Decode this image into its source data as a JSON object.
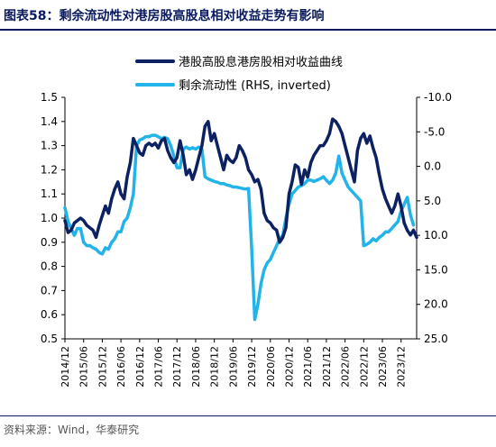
{
  "header": {
    "title": "图表58：剩余流动性对港房股高股息相对收益走势有影响"
  },
  "footer": {
    "source": "资料来源：Wind，华泰研究"
  },
  "colors": {
    "navy": "#0b2161",
    "cyan": "#22b3e8",
    "title": "#0a1a5c"
  },
  "chart_data": {
    "type": "line",
    "title": "",
    "xlabel": "",
    "ylabel": "",
    "ylim": [
      0.5,
      1.5
    ],
    "y_ticks": [
      "1.5",
      "1.4",
      "1.3",
      "1.2",
      "1.1",
      "1.0",
      "0.9",
      "0.8",
      "0.7",
      "0.6",
      "0.5"
    ],
    "y2lim": [
      -10,
      25
    ],
    "y2_inverted": true,
    "y2_ticks": [
      "-10.0",
      "-5.0",
      "0.0",
      "5.0",
      "10.0",
      "15.0",
      "20.0",
      "25.0"
    ],
    "x_range": [
      "2014-12",
      "2024-05"
    ],
    "x_ticks": [
      "2014/12",
      "2015/06",
      "2015/12",
      "2016/06",
      "2016/12",
      "2017/06",
      "2017/12",
      "2018/06",
      "2018/12",
      "2019/06",
      "2019/12",
      "2020/06",
      "2020/12",
      "2021/06",
      "2021/12",
      "2022/06",
      "2022/12",
      "2023/06",
      "2023/12"
    ],
    "legend_position": "top-center",
    "series": [
      {
        "name": "港股高股息港房股相对收益曲线",
        "axis": "left",
        "color": "#0b2161",
        "points": [
          [
            "2014-12",
            0.99
          ],
          [
            "2015-01",
            0.94
          ],
          [
            "2015-02",
            0.95
          ],
          [
            "2015-03",
            0.98
          ],
          [
            "2015-04",
            0.99
          ],
          [
            "2015-05",
            1.0
          ],
          [
            "2015-06",
            0.99
          ],
          [
            "2015-07",
            0.97
          ],
          [
            "2015-08",
            0.96
          ],
          [
            "2015-09",
            0.95
          ],
          [
            "2015-10",
            0.92
          ],
          [
            "2015-11",
            0.97
          ],
          [
            "2015-12",
            1.01
          ],
          [
            "2016-01",
            1.05
          ],
          [
            "2016-02",
            1.02
          ],
          [
            "2016-03",
            1.08
          ],
          [
            "2016-04",
            1.12
          ],
          [
            "2016-05",
            1.15
          ],
          [
            "2016-06",
            1.1
          ],
          [
            "2016-07",
            1.08
          ],
          [
            "2016-08",
            1.17
          ],
          [
            "2016-09",
            1.23
          ],
          [
            "2016-10",
            1.33
          ],
          [
            "2016-11",
            1.3
          ],
          [
            "2016-12",
            1.27
          ],
          [
            "2017-01",
            1.26
          ],
          [
            "2017-02",
            1.3
          ],
          [
            "2017-03",
            1.31
          ],
          [
            "2017-04",
            1.3
          ],
          [
            "2017-05",
            1.31
          ],
          [
            "2017-06",
            1.29
          ],
          [
            "2017-07",
            1.32
          ],
          [
            "2017-08",
            1.33
          ],
          [
            "2017-09",
            1.28
          ],
          [
            "2017-10",
            1.25
          ],
          [
            "2017-11",
            1.23
          ],
          [
            "2017-12",
            1.25
          ],
          [
            "2018-01",
            1.32
          ],
          [
            "2018-02",
            1.26
          ],
          [
            "2018-03",
            1.18
          ],
          [
            "2018-04",
            1.2
          ],
          [
            "2018-05",
            1.16
          ],
          [
            "2018-06",
            1.2
          ],
          [
            "2018-07",
            1.25
          ],
          [
            "2018-08",
            1.3
          ],
          [
            "2018-09",
            1.38
          ],
          [
            "2018-10",
            1.4
          ],
          [
            "2018-11",
            1.32
          ],
          [
            "2018-12",
            1.35
          ],
          [
            "2019-01",
            1.3
          ],
          [
            "2019-02",
            1.25
          ],
          [
            "2019-03",
            1.2
          ],
          [
            "2019-04",
            1.26
          ],
          [
            "2019-05",
            1.24
          ],
          [
            "2019-06",
            1.23
          ],
          [
            "2019-07",
            1.25
          ],
          [
            "2019-08",
            1.3
          ],
          [
            "2019-09",
            1.28
          ],
          [
            "2019-10",
            1.25
          ],
          [
            "2019-11",
            1.2
          ],
          [
            "2019-12",
            1.18
          ],
          [
            "2020-01",
            1.15
          ],
          [
            "2020-02",
            1.16
          ],
          [
            "2020-03",
            1.12
          ],
          [
            "2020-04",
            1.02
          ],
          [
            "2020-05",
            0.99
          ],
          [
            "2020-06",
            0.98
          ],
          [
            "2020-07",
            0.96
          ],
          [
            "2020-08",
            0.95
          ],
          [
            "2020-09",
            0.9
          ],
          [
            "2020-10",
            0.92
          ],
          [
            "2020-11",
            0.96
          ],
          [
            "2020-12",
            1.1
          ],
          [
            "2021-01",
            1.15
          ],
          [
            "2021-02",
            1.22
          ],
          [
            "2021-03",
            1.21
          ],
          [
            "2021-04",
            1.14
          ],
          [
            "2021-05",
            1.2
          ],
          [
            "2021-06",
            1.17
          ],
          [
            "2021-07",
            1.23
          ],
          [
            "2021-08",
            1.26
          ],
          [
            "2021-09",
            1.28
          ],
          [
            "2021-10",
            1.3
          ],
          [
            "2021-11",
            1.3
          ],
          [
            "2021-12",
            1.32
          ],
          [
            "2022-01",
            1.35
          ],
          [
            "2022-02",
            1.41
          ],
          [
            "2022-03",
            1.4
          ],
          [
            "2022-04",
            1.38
          ],
          [
            "2022-05",
            1.35
          ],
          [
            "2022-06",
            1.3
          ],
          [
            "2022-07",
            1.25
          ],
          [
            "2022-08",
            1.2
          ],
          [
            "2022-09",
            1.15
          ],
          [
            "2022-10",
            1.28
          ],
          [
            "2022-11",
            1.33
          ],
          [
            "2022-12",
            1.35
          ],
          [
            "2023-01",
            1.31
          ],
          [
            "2023-02",
            1.34
          ],
          [
            "2023-03",
            1.29
          ],
          [
            "2023-04",
            1.25
          ],
          [
            "2023-05",
            1.18
          ],
          [
            "2023-06",
            1.12
          ],
          [
            "2023-07",
            1.08
          ],
          [
            "2023-08",
            1.05
          ],
          [
            "2023-09",
            1.02
          ],
          [
            "2023-10",
            1.05
          ],
          [
            "2023-11",
            1.1
          ],
          [
            "2023-12",
            1.05
          ],
          [
            "2024-01",
            0.98
          ],
          [
            "2024-02",
            0.95
          ],
          [
            "2024-03",
            0.93
          ],
          [
            "2024-04",
            0.95
          ],
          [
            "2024-05",
            0.92
          ]
        ]
      },
      {
        "name": "剩余流动性 (RHS, inverted)",
        "axis": "right",
        "color": "#22b3e8",
        "points": [
          [
            "2014-12",
            6.0
          ],
          [
            "2015-01",
            8.0
          ],
          [
            "2015-02",
            9.0
          ],
          [
            "2015-03",
            10.0
          ],
          [
            "2015-04",
            9.0
          ],
          [
            "2015-05",
            9.0
          ],
          [
            "2015-06",
            11.0
          ],
          [
            "2015-07",
            11.5
          ],
          [
            "2015-08",
            11.5
          ],
          [
            "2015-09",
            11.8
          ],
          [
            "2015-10",
            12.0
          ],
          [
            "2015-11",
            12.5
          ],
          [
            "2015-12",
            12.7
          ],
          [
            "2016-01",
            11.8
          ],
          [
            "2016-02",
            12.0
          ],
          [
            "2016-03",
            11.0
          ],
          [
            "2016-04",
            10.5
          ],
          [
            "2016-05",
            9.5
          ],
          [
            "2016-06",
            9.5
          ],
          [
            "2016-07",
            8.0
          ],
          [
            "2016-08",
            7.5
          ],
          [
            "2016-09",
            6.0
          ],
          [
            "2016-10",
            4.0
          ],
          [
            "2016-11",
            -3.0
          ],
          [
            "2016-12",
            -3.8
          ],
          [
            "2017-01",
            -4.0
          ],
          [
            "2017-02",
            -4.3
          ],
          [
            "2017-03",
            -4.3
          ],
          [
            "2017-04",
            -4.5
          ],
          [
            "2017-05",
            -4.5
          ],
          [
            "2017-06",
            -4.3
          ],
          [
            "2017-07",
            -4.0
          ],
          [
            "2017-08",
            -4.2
          ],
          [
            "2017-09",
            -4.0
          ],
          [
            "2017-10",
            -3.0
          ],
          [
            "2017-11",
            -1.5
          ],
          [
            "2017-12",
            0.2
          ],
          [
            "2018-01",
            0.2
          ],
          [
            "2018-02",
            -2.5
          ],
          [
            "2018-03",
            -2.8
          ],
          [
            "2018-04",
            -2.5
          ],
          [
            "2018-05",
            -2.7
          ],
          [
            "2018-06",
            -2.5
          ],
          [
            "2018-07",
            -2.8
          ],
          [
            "2018-08",
            -2.5
          ],
          [
            "2018-09",
            1.5
          ],
          [
            "2018-10",
            1.8
          ],
          [
            "2018-11",
            2.0
          ],
          [
            "2018-12",
            2.2
          ],
          [
            "2019-01",
            2.3
          ],
          [
            "2019-02",
            2.5
          ],
          [
            "2019-03",
            2.5
          ],
          [
            "2019-04",
            2.7
          ],
          [
            "2019-05",
            2.8
          ],
          [
            "2019-06",
            3.0
          ],
          [
            "2019-07",
            3.0
          ],
          [
            "2019-08",
            3.1
          ],
          [
            "2019-09",
            3.2
          ],
          [
            "2019-10",
            3.3
          ],
          [
            "2019-11",
            3.2
          ],
          [
            "2019-12",
            12.0
          ],
          [
            "2020-01",
            22.2
          ],
          [
            "2020-02",
            20.0
          ],
          [
            "2020-03",
            17.0
          ],
          [
            "2020-04",
            15.0
          ],
          [
            "2020-05",
            14.0
          ],
          [
            "2020-06",
            13.5
          ],
          [
            "2020-07",
            12.5
          ],
          [
            "2020-08",
            11.5
          ],
          [
            "2020-09",
            10.5
          ],
          [
            "2020-10",
            10.0
          ],
          [
            "2020-11",
            7.5
          ],
          [
            "2020-12",
            5.5
          ],
          [
            "2021-01",
            4.0
          ],
          [
            "2021-02",
            3.5
          ],
          [
            "2021-03",
            3.0
          ],
          [
            "2021-04",
            2.8
          ],
          [
            "2021-05",
            2.5
          ],
          [
            "2021-06",
            2.0
          ],
          [
            "2021-07",
            2.0
          ],
          [
            "2021-08",
            2.2
          ],
          [
            "2021-09",
            2.0
          ],
          [
            "2021-10",
            1.8
          ],
          [
            "2021-11",
            1.5
          ],
          [
            "2021-12",
            2.0
          ],
          [
            "2022-01",
            2.5
          ],
          [
            "2022-02",
            2.0
          ],
          [
            "2022-03",
            1.0
          ],
          [
            "2022-04",
            -1.5
          ],
          [
            "2022-05",
            1.0
          ],
          [
            "2022-06",
            2.0
          ],
          [
            "2022-07",
            3.0
          ],
          [
            "2022-08",
            3.5
          ],
          [
            "2022-09",
            4.0
          ],
          [
            "2022-10",
            4.5
          ],
          [
            "2022-11",
            5.0
          ],
          [
            "2022-12",
            11.5
          ],
          [
            "2023-01",
            11.3
          ],
          [
            "2023-02",
            11.0
          ],
          [
            "2023-03",
            10.5
          ],
          [
            "2023-04",
            10.8
          ],
          [
            "2023-05",
            10.3
          ],
          [
            "2023-06",
            10.0
          ],
          [
            "2023-07",
            9.5
          ],
          [
            "2023-08",
            9.5
          ],
          [
            "2023-09",
            9.0
          ],
          [
            "2023-10",
            8.5
          ],
          [
            "2023-11",
            8.0
          ],
          [
            "2023-12",
            6.5
          ],
          [
            "2024-01",
            5.5
          ],
          [
            "2024-02",
            4.5
          ],
          [
            "2024-03",
            7.0
          ],
          [
            "2024-04",
            8.5
          ]
        ]
      }
    ]
  }
}
